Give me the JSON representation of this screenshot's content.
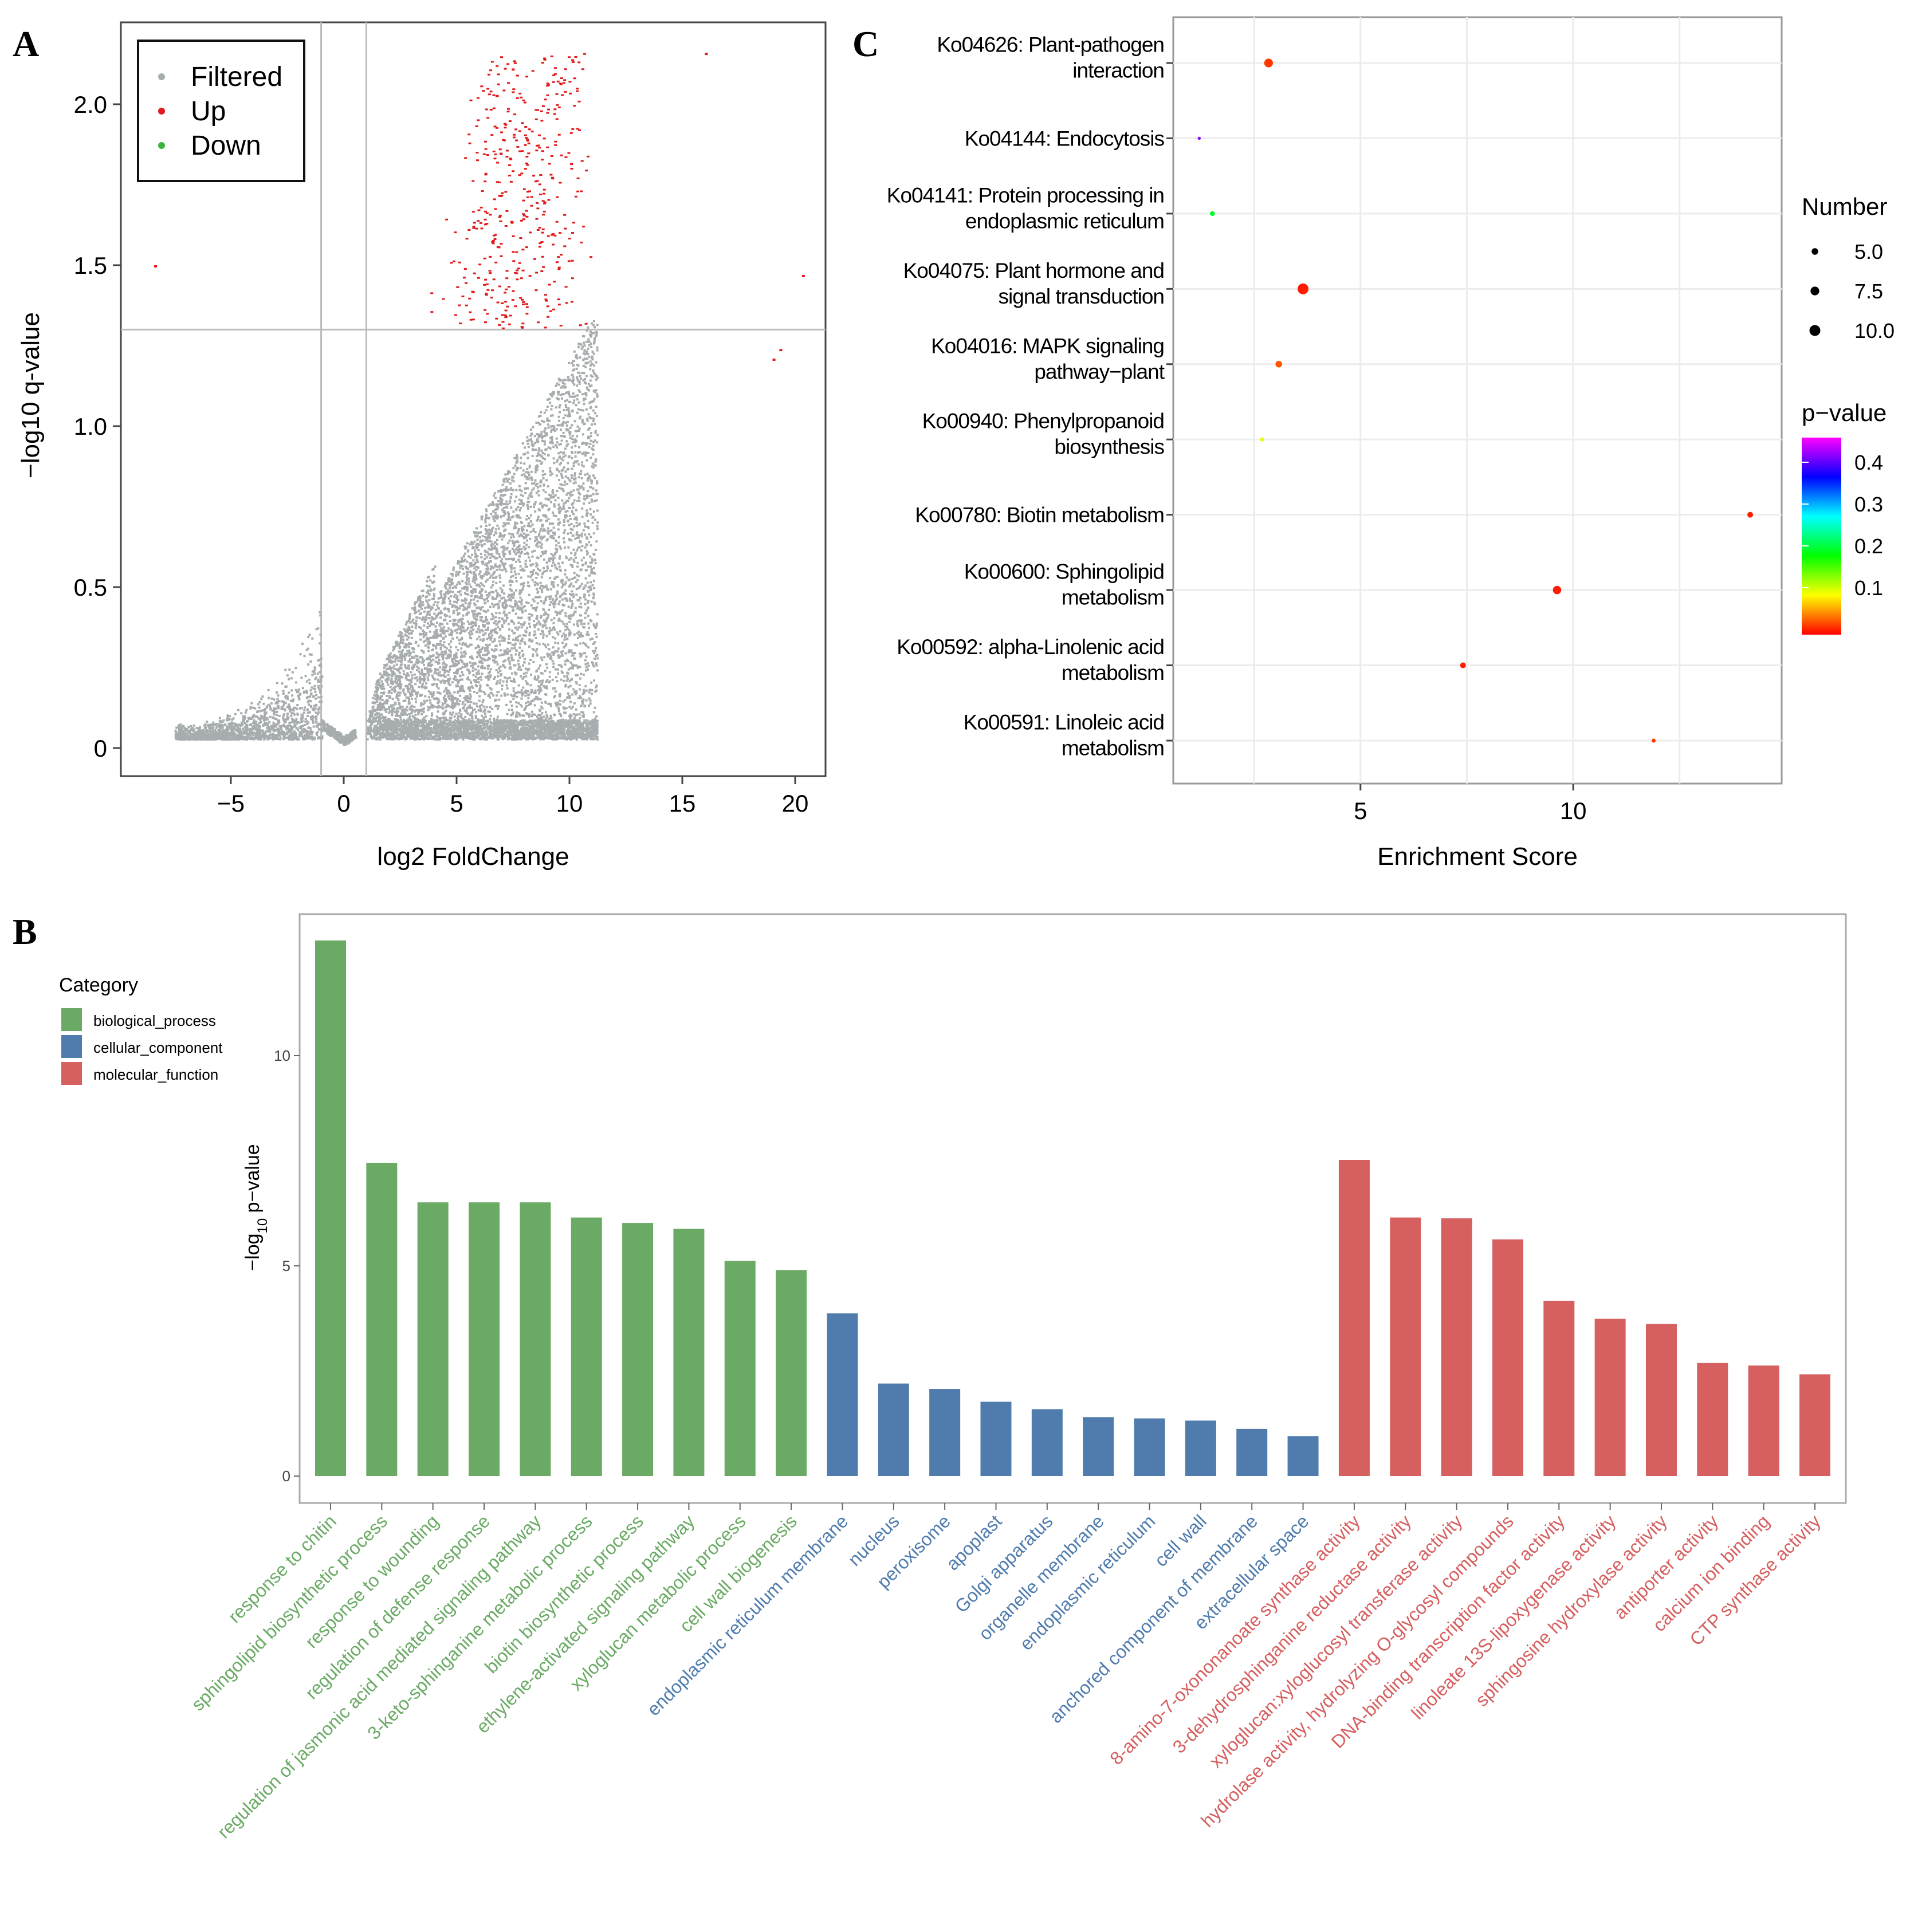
{
  "panel_labels": {
    "a": "A",
    "b": "B",
    "c": "C"
  },
  "colors": {
    "filtered": "#a7adae",
    "up": "#e01b1b",
    "down": "#3cb43c",
    "biological_process": "#6aaa64",
    "cellular_component": "#4f7cad",
    "molecular_function": "#d65f5f"
  },
  "chart_data": [
    {
      "id": "A",
      "type": "scatter",
      "title": "",
      "xlabel": "log2 FoldChange",
      "ylabel": "−log10 q-value",
      "xlim": [
        -10.5,
        21
      ],
      "ylim": [
        -0.08,
        2.27
      ],
      "xticks": [
        -5,
        0,
        5,
        10,
        15,
        20
      ],
      "xtick_labels": [
        "−5",
        "0",
        "5",
        "10",
        "15",
        "20"
      ],
      "yticks": [
        0,
        0.5,
        1.0,
        1.5,
        2.0
      ],
      "ytick_labels": [
        "0",
        "0.5",
        "1.0",
        "1.5",
        "2.0"
      ],
      "thresholds": {
        "log2fc": [
          -1,
          1
        ],
        "neg_log10_q": 1.3
      },
      "legend": {
        "position": "top-left",
        "entries": [
          "Filtered",
          "Up",
          "Down"
        ]
      },
      "series": [
        {
          "name": "Filtered",
          "note": "dense V-shaped cloud, y < 1.3"
        },
        {
          "name": "Up",
          "note": "x 3–16, y 1.3–2.16"
        },
        {
          "name": "Down",
          "note": "none visible"
        }
      ]
    },
    {
      "id": "C",
      "type": "scatter",
      "xlabel": "Enrichment Score",
      "xlim": [
        0.6,
        14.9
      ],
      "xticks": [
        5,
        10
      ],
      "xtick_labels": [
        "5",
        "10"
      ],
      "categories": [
        [
          "Ko04626: Plant-pathogen",
          "interaction"
        ],
        [
          "Ko04144: Endocytosis"
        ],
        [
          "Ko04141: Protein processing in",
          "endoplasmic reticulum"
        ],
        [
          "Ko04075: Plant hormone and",
          "signal transduction"
        ],
        [
          "Ko04016: MAPK signaling",
          "pathway−plant"
        ],
        [
          "Ko00940: Phenylpropanoid",
          "biosynthesis"
        ],
        [
          "Ko00780: Biotin metabolism"
        ],
        [
          "Ko00600: Sphingolipid",
          "metabolism"
        ],
        [
          "Ko00592: alpha-Linolenic acid",
          "metabolism"
        ],
        [
          "Ko00591: Linoleic acid",
          "metabolism"
        ]
      ],
      "enrichment": [
        2.84,
        1.21,
        1.52,
        3.65,
        3.08,
        2.69,
        14.16,
        9.62,
        7.41,
        11.89
      ],
      "number": [
        7.5,
        1,
        3,
        10,
        5,
        2,
        4,
        7,
        4,
        2
      ],
      "pvalue": [
        0.02,
        0.42,
        0.2,
        0.01,
        0.03,
        0.1,
        0.01,
        0.01,
        0.01,
        0.02
      ],
      "size_legend": {
        "title": "Number",
        "values": [
          5.0,
          7.5,
          10.0
        ],
        "labels": [
          "5.0",
          "7.5",
          "10.0"
        ]
      },
      "color_legend": {
        "title": "p−value",
        "range": [
          0,
          0.46
        ],
        "ticks": [
          0.1,
          0.2,
          0.3,
          0.4
        ],
        "labels": [
          "0.1",
          "0.2",
          "0.3",
          "0.4"
        ]
      }
    },
    {
      "id": "B",
      "type": "bar",
      "ylabel_main": "−log",
      "ylabel_sub": "10",
      "ylabel_rest": " p−value",
      "ylim": [
        -0.4,
        13.5
      ],
      "yticks": [
        0,
        5,
        10
      ],
      "ytick_labels": [
        "0",
        "5",
        "10"
      ],
      "legend": {
        "title": "Category",
        "entries": [
          "biological_process",
          "cellular_component",
          "molecular_function"
        ]
      },
      "categories": [
        "response to chitin",
        "sphingolipid biosynthetic process",
        "response to wounding",
        "regulation of defense response",
        "regulation of jasmonic acid mediated signaling pathway",
        "3-keto-sphinganine metabolic process",
        "biotin biosynthetic process",
        "ethylene-activated signaling pathway",
        "xyloglucan metabolic process",
        "cell wall biogenesis",
        "endoplasmic reticulum membrane",
        "nucleus",
        "peroxisome",
        "apoplast",
        "Golgi apparatus",
        "organelle membrane",
        "endoplasmic reticulum",
        "cell wall",
        "anchored component of membrane",
        "extracellular space",
        "8-amino-7-oxononanoate synthase activity",
        "3-dehydrosphinganine reductase activity",
        "xyloglucan:xyloglucosyl transferase activity",
        "hydrolase activity, hydrolyzing O-glycosyl compounds",
        "DNA-binding transcription factor activity",
        "linoleate 13S-lipoxygenase activity",
        "sphingosine hydroxylase activity",
        "antiporter activity",
        "calcium ion binding",
        "CTP synthase activity"
      ],
      "category_group": [
        0,
        0,
        0,
        0,
        0,
        0,
        0,
        0,
        0,
        0,
        1,
        1,
        1,
        1,
        1,
        1,
        1,
        1,
        1,
        1,
        2,
        2,
        2,
        2,
        2,
        2,
        2,
        2,
        2,
        2
      ],
      "values": [
        12.74,
        7.45,
        6.51,
        6.51,
        6.51,
        6.15,
        6.02,
        5.88,
        5.12,
        4.9,
        3.87,
        2.2,
        2.07,
        1.77,
        1.59,
        1.4,
        1.37,
        1.32,
        1.12,
        0.95,
        7.52,
        6.15,
        6.13,
        5.63,
        4.17,
        3.74,
        3.62,
        2.69,
        2.63,
        2.42
      ]
    }
  ]
}
